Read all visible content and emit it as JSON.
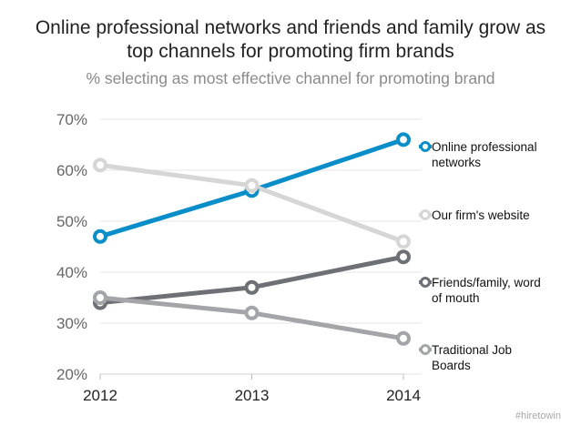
{
  "chart_data": {
    "type": "line",
    "title_lines": [
      "Online professional networks and friends and family grow as",
      "top channels for promoting firm brands"
    ],
    "subtitle": "% selecting as most effective channel for promoting brand",
    "xlabel": "",
    "ylabel": "",
    "x": [
      "2012",
      "2013",
      "2014"
    ],
    "ylim": [
      20,
      70
    ],
    "yticks": [
      20,
      30,
      40,
      50,
      60,
      70
    ],
    "ytick_labels": [
      "20%",
      "30%",
      "40%",
      "50%",
      "60%",
      "70%"
    ],
    "grid": true,
    "legend_position": "right",
    "series": [
      {
        "name": "Online professional networks",
        "legend_lines": [
          "Online professional",
          "networks"
        ],
        "values": [
          47,
          56,
          66
        ],
        "color": "#0a8ec9"
      },
      {
        "name": "Our firm's website",
        "legend_lines": [
          "Our firm's website"
        ],
        "values": [
          61,
          57,
          46
        ],
        "color": "#d6d6d6"
      },
      {
        "name": "Friends/family, word of mouth",
        "legend_lines": [
          "Friends/family, word",
          "of mouth"
        ],
        "values": [
          34,
          37,
          43
        ],
        "color": "#6d7074"
      },
      {
        "name": "Traditional Job Boards",
        "legend_lines": [
          "Traditional Job",
          "Boards"
        ],
        "values": [
          35,
          32,
          27
        ],
        "color": "#a3a5a8"
      }
    ]
  },
  "watermark": "#hiretowin"
}
